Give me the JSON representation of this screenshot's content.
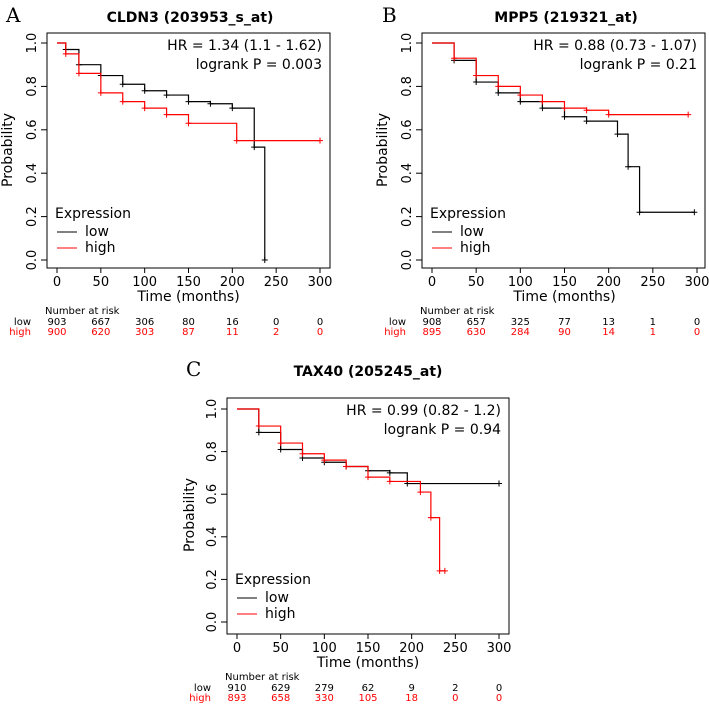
{
  "chart_data": [
    {
      "type": "line",
      "panel": "A",
      "title": "CLDN3 (203953_s_at)",
      "hr_text": "HR = 1.34 (1.1 - 1.62)",
      "p_text": "logrank P = 0.003",
      "xlabel": "Time (months)",
      "ylabel": "Probability",
      "xlim": [
        0,
        300
      ],
      "ylim": [
        0,
        1
      ],
      "xticks": [
        "0",
        "50",
        "100",
        "150",
        "200",
        "250",
        "300"
      ],
      "yticks": [
        "0.0",
        "0.2",
        "0.4",
        "0.6",
        "0.8",
        "1.0"
      ],
      "legend_title": "Expression",
      "legend_position": "bottom-left",
      "series": [
        {
          "name": "low",
          "color": "#000000",
          "points": [
            [
              0,
              1
            ],
            [
              10,
              0.97
            ],
            [
              25,
              0.9
            ],
            [
              50,
              0.85
            ],
            [
              75,
              0.81
            ],
            [
              100,
              0.78
            ],
            [
              125,
              0.76
            ],
            [
              150,
              0.73
            ],
            [
              175,
              0.72
            ],
            [
              200,
              0.7
            ],
            [
              225,
              0.52
            ],
            [
              237,
              0
            ]
          ]
        },
        {
          "name": "high",
          "color": "#ff0000",
          "points": [
            [
              0,
              1
            ],
            [
              10,
              0.95
            ],
            [
              25,
              0.86
            ],
            [
              50,
              0.77
            ],
            [
              75,
              0.73
            ],
            [
              100,
              0.7
            ],
            [
              125,
              0.67
            ],
            [
              150,
              0.63
            ],
            [
              205,
              0.55
            ],
            [
              300,
              0.55
            ]
          ]
        }
      ],
      "risk_title": "Number at risk",
      "risk": {
        "low": [
          "903",
          "667",
          "306",
          "80",
          "16",
          "0",
          "0"
        ],
        "high": [
          "900",
          "620",
          "303",
          "87",
          "11",
          "2",
          "0"
        ]
      }
    },
    {
      "type": "line",
      "panel": "B",
      "title": "MPP5 (219321_at)",
      "hr_text": "HR = 0.88 (0.73 - 1.07)",
      "p_text": "logrank P = 0.21",
      "xlabel": "Time (months)",
      "ylabel": "Probability",
      "xlim": [
        0,
        300
      ],
      "ylim": [
        0,
        1
      ],
      "xticks": [
        "0",
        "50",
        "100",
        "150",
        "200",
        "250",
        "300"
      ],
      "yticks": [
        "0.0",
        "0.2",
        "0.4",
        "0.6",
        "0.8",
        "1.0"
      ],
      "legend_title": "Expression",
      "legend_position": "bottom-left",
      "series": [
        {
          "name": "low",
          "color": "#000000",
          "points": [
            [
              0,
              1
            ],
            [
              25,
              0.92
            ],
            [
              50,
              0.82
            ],
            [
              75,
              0.77
            ],
            [
              100,
              0.73
            ],
            [
              125,
              0.7
            ],
            [
              150,
              0.66
            ],
            [
              175,
              0.64
            ],
            [
              210,
              0.58
            ],
            [
              222,
              0.43
            ],
            [
              235,
              0.22
            ],
            [
              297,
              0.22
            ]
          ]
        },
        {
          "name": "high",
          "color": "#ff0000",
          "points": [
            [
              0,
              1
            ],
            [
              25,
              0.93
            ],
            [
              50,
              0.85
            ],
            [
              75,
              0.8
            ],
            [
              100,
              0.76
            ],
            [
              125,
              0.73
            ],
            [
              150,
              0.7
            ],
            [
              175,
              0.69
            ],
            [
              200,
              0.67
            ],
            [
              290,
              0.67
            ]
          ]
        }
      ],
      "risk_title": "Number at risk",
      "risk": {
        "low": [
          "908",
          "657",
          "325",
          "77",
          "13",
          "1",
          "0"
        ],
        "high": [
          "895",
          "630",
          "284",
          "90",
          "14",
          "1",
          "0"
        ]
      }
    },
    {
      "type": "line",
      "panel": "C",
      "title": "TAX40 (205245_at)",
      "hr_text": "HR = 0.99 (0.82 - 1.2)",
      "p_text": "logrank P = 0.94",
      "xlabel": "Time (months)",
      "ylabel": "Probability",
      "xlim": [
        0,
        300
      ],
      "ylim": [
        0,
        1
      ],
      "xticks": [
        "0",
        "50",
        "100",
        "150",
        "200",
        "250",
        "300"
      ],
      "yticks": [
        "0.0",
        "0.2",
        "0.4",
        "0.6",
        "0.8",
        "1.0"
      ],
      "legend_title": "Expression",
      "legend_position": "bottom-left",
      "series": [
        {
          "name": "low",
          "color": "#000000",
          "points": [
            [
              0,
              1
            ],
            [
              25,
              0.89
            ],
            [
              50,
              0.81
            ],
            [
              75,
              0.77
            ],
            [
              100,
              0.75
            ],
            [
              125,
              0.73
            ],
            [
              150,
              0.71
            ],
            [
              175,
              0.7
            ],
            [
              195,
              0.65
            ],
            [
              300,
              0.65
            ]
          ]
        },
        {
          "name": "high",
          "color": "#ff0000",
          "points": [
            [
              0,
              1
            ],
            [
              25,
              0.92
            ],
            [
              50,
              0.84
            ],
            [
              75,
              0.79
            ],
            [
              100,
              0.76
            ],
            [
              125,
              0.73
            ],
            [
              150,
              0.68
            ],
            [
              175,
              0.66
            ],
            [
              210,
              0.61
            ],
            [
              222,
              0.49
            ],
            [
              232,
              0.24
            ],
            [
              238,
              0.24
            ]
          ]
        }
      ],
      "risk_title": "Number at risk",
      "risk": {
        "low": [
          "910",
          "629",
          "279",
          "62",
          "9",
          "2",
          "0"
        ],
        "high": [
          "893",
          "658",
          "330",
          "105",
          "18",
          "0",
          "0"
        ]
      }
    }
  ]
}
